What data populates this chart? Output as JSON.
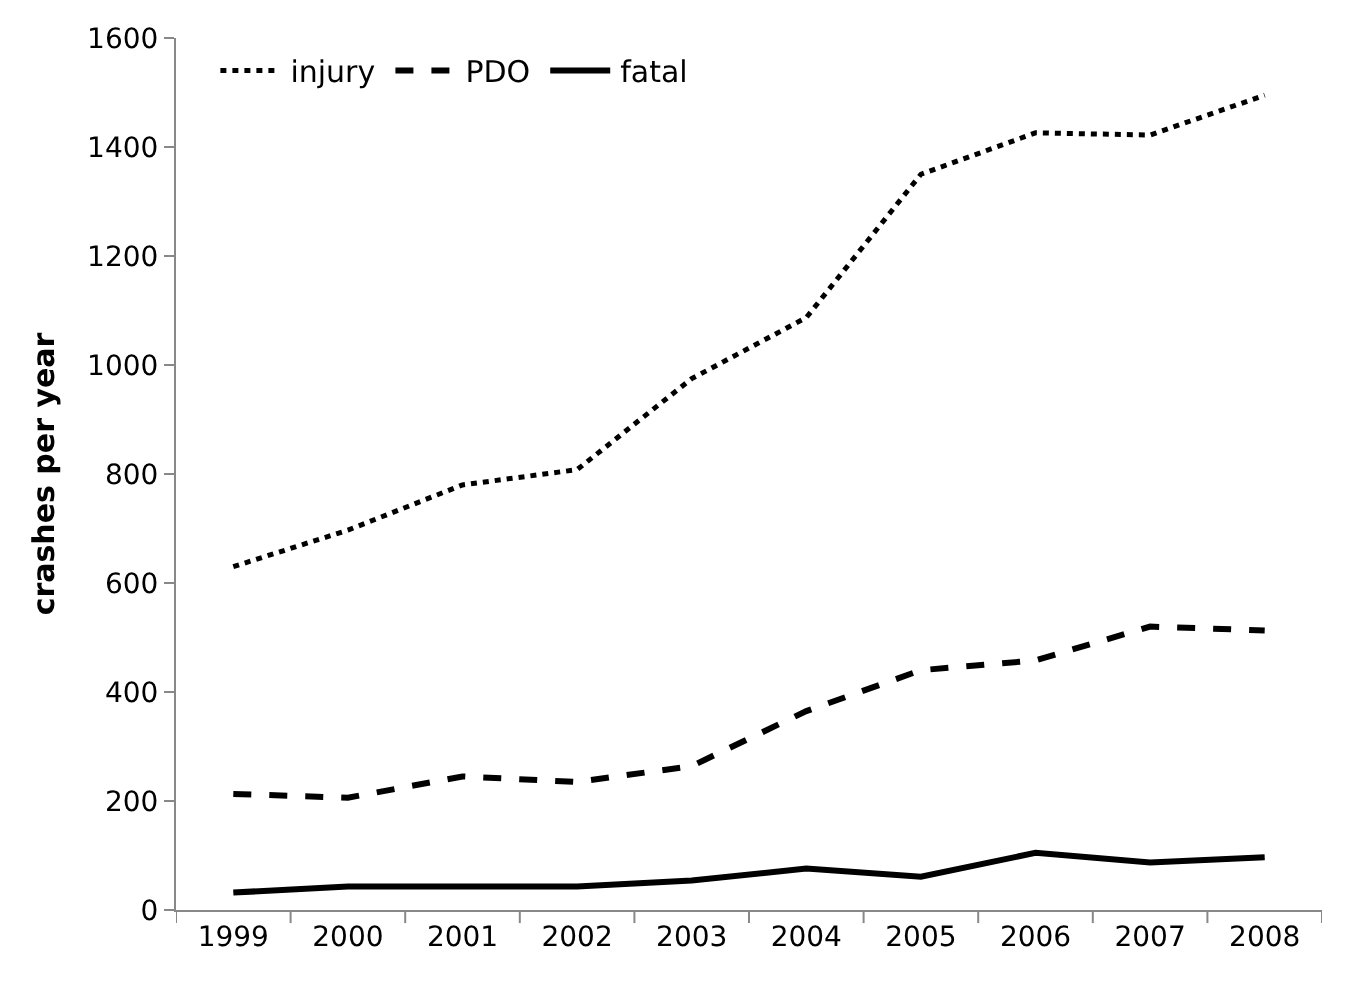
{
  "chart_data": {
    "type": "line",
    "ylabel": "crashes per year",
    "categories": [
      "1999",
      "2000",
      "2001",
      "2002",
      "2003",
      "2004",
      "2005",
      "2006",
      "2007",
      "2008"
    ],
    "ylim": [
      0,
      1600
    ],
    "yticks": [
      0,
      200,
      400,
      600,
      800,
      1000,
      1200,
      1400,
      1600
    ],
    "grid": false,
    "legend": "top left",
    "marker": "none",
    "series": [
      {
        "name": "injury",
        "color": "#000000",
        "line_style": "dotted",
        "values": [
          630,
          697,
          780,
          808,
          975,
          1087,
          1350,
          1426,
          1422,
          1495
        ]
      },
      {
        "name": "PDO",
        "color": "#000000",
        "line_style": "dashed",
        "values": [
          213,
          206,
          245,
          235,
          264,
          365,
          440,
          458,
          520,
          513
        ]
      },
      {
        "name": "fatal",
        "color": "#000000",
        "line_style": "solid",
        "values": [
          32,
          43,
          43,
          43,
          54,
          76,
          61,
          105,
          87,
          97
        ]
      }
    ]
  }
}
